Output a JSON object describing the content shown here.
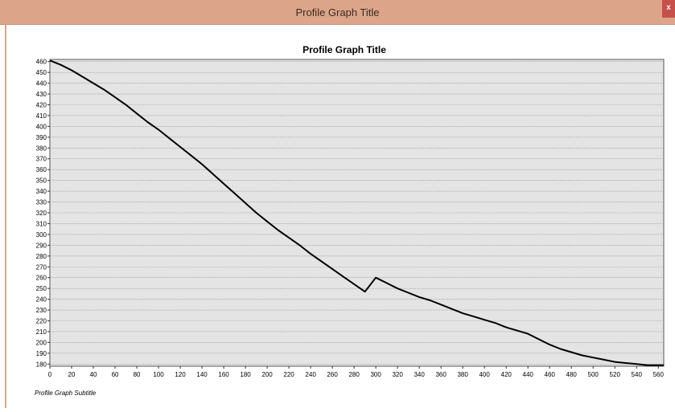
{
  "window": {
    "title": "Profile Graph Title",
    "close_label": "x",
    "colors": {
      "titlebar": "#dca58a",
      "close": "#c7504a"
    }
  },
  "chart_data": {
    "type": "line",
    "title": "Profile Graph Title",
    "subtitle": "Profile Graph Subtitle",
    "xlabel": "",
    "ylabel": "",
    "xlim": [
      0,
      565
    ],
    "ylim": [
      178,
      462
    ],
    "x_ticks": [
      0,
      20,
      40,
      60,
      80,
      100,
      120,
      140,
      160,
      180,
      200,
      220,
      240,
      260,
      280,
      300,
      320,
      340,
      360,
      380,
      400,
      420,
      440,
      460,
      480,
      500,
      520,
      540,
      560
    ],
    "y_ticks": [
      180,
      190,
      200,
      210,
      220,
      230,
      240,
      250,
      260,
      270,
      280,
      290,
      300,
      310,
      320,
      330,
      340,
      350,
      360,
      370,
      380,
      390,
      400,
      410,
      420,
      430,
      440,
      450,
      460
    ],
    "grid": true,
    "legend": "none",
    "plot_background": "#e4e4e4",
    "series": [
      {
        "color": "#000000",
        "x": [
          0,
          10,
          20,
          30,
          40,
          50,
          60,
          70,
          80,
          90,
          100,
          110,
          120,
          130,
          140,
          150,
          160,
          170,
          180,
          190,
          200,
          210,
          220,
          230,
          240,
          250,
          260,
          270,
          280,
          290,
          300,
          310,
          320,
          330,
          340,
          350,
          360,
          370,
          380,
          390,
          400,
          410,
          420,
          430,
          440,
          450,
          460,
          470,
          480,
          490,
          500,
          510,
          520,
          530,
          540,
          550,
          560,
          565
        ],
        "y": [
          461,
          457,
          452,
          446,
          440,
          434,
          427,
          420,
          412,
          404,
          397,
          389,
          381,
          373,
          365,
          356,
          347,
          338,
          329,
          320,
          312,
          304,
          297,
          290,
          282,
          275,
          268,
          261,
          254,
          247,
          260,
          255,
          250,
          246,
          242,
          239,
          235,
          231,
          227,
          224,
          221,
          218,
          214,
          211,
          208,
          203,
          198,
          194,
          191,
          188,
          186,
          184,
          182,
          181,
          180,
          179,
          179,
          179
        ]
      }
    ]
  }
}
